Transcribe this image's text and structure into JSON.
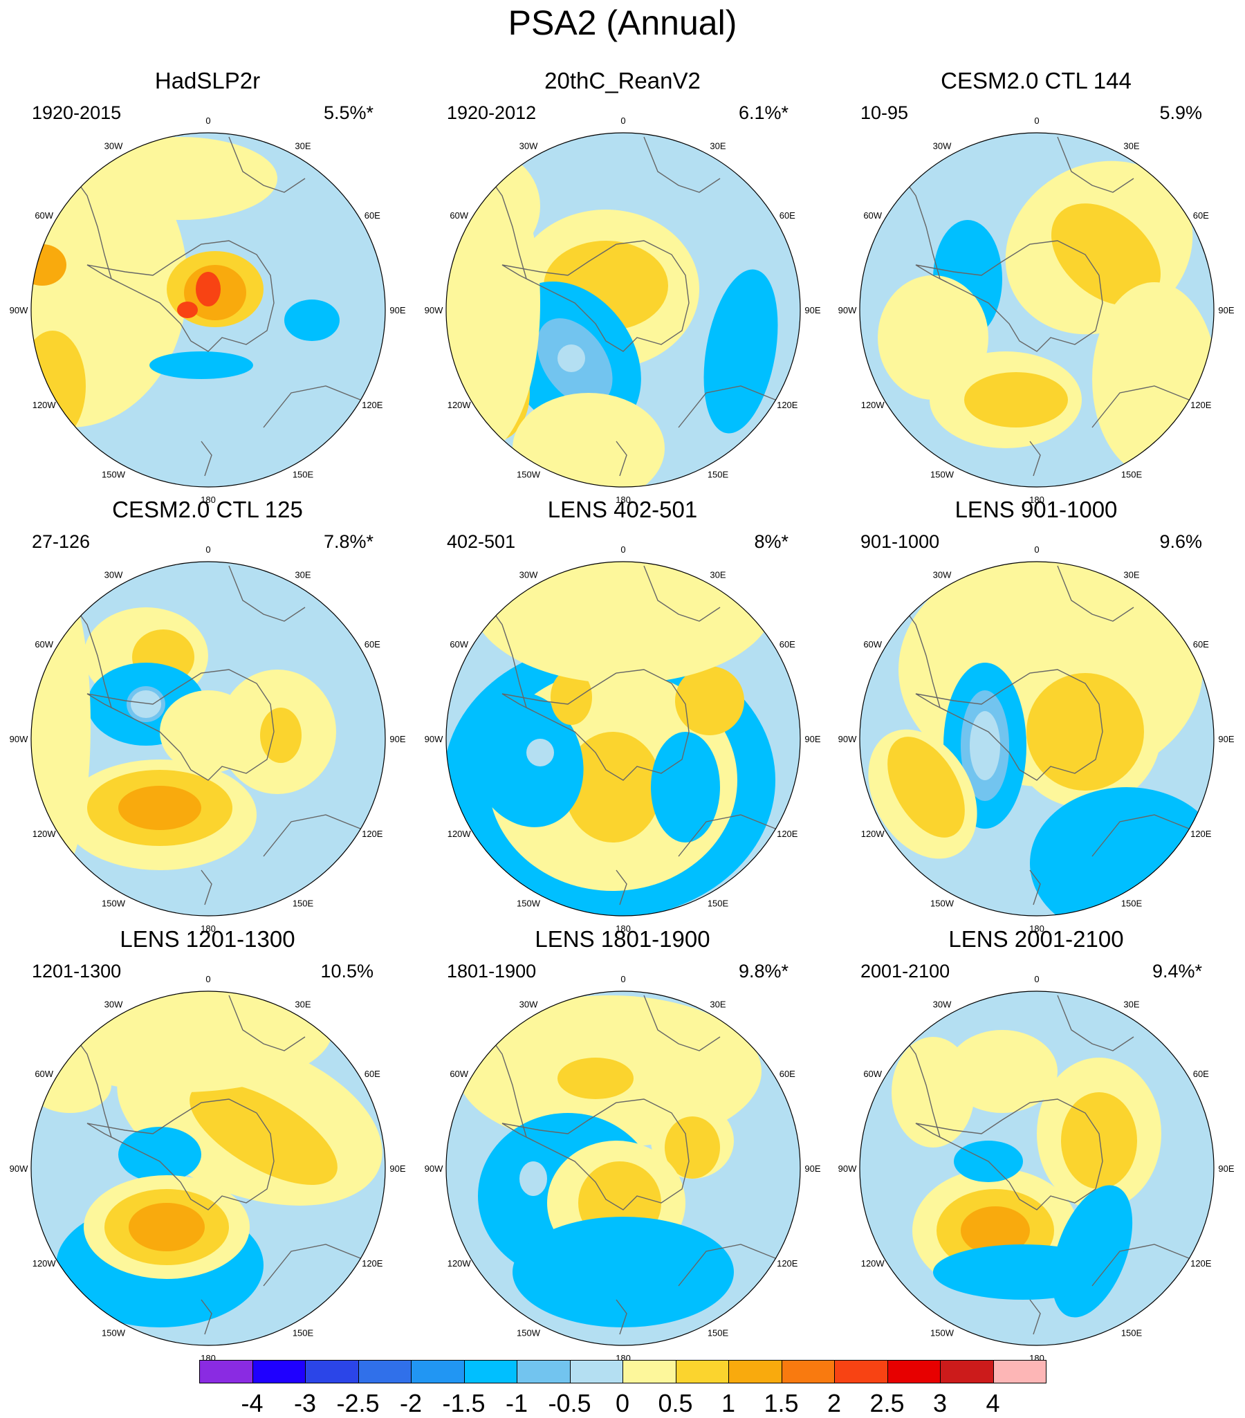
{
  "title": "PSA2 (Annual)",
  "longitude_labels": [
    "0",
    "30E",
    "60E",
    "90E",
    "120E",
    "150E",
    "180",
    "150W",
    "120W",
    "90W",
    "60W",
    "30W"
  ],
  "panels": [
    {
      "title": "HadSLP2r",
      "period": "1920-2015",
      "variance": "5.5%*"
    },
    {
      "title": "20thC_ReanV2",
      "period": "1920-2012",
      "variance": "6.1%*"
    },
    {
      "title": "CESM2.0 CTL 144",
      "period": "10-95",
      "variance": "5.9%"
    },
    {
      "title": "CESM2.0 CTL 125",
      "period": "27-126",
      "variance": "7.8%*"
    },
    {
      "title": "LENS 402-501",
      "period": "402-501",
      "variance": "8%*"
    },
    {
      "title": "LENS 901-1000",
      "period": "901-1000",
      "variance": "9.6%"
    },
    {
      "title": "LENS 1201-1300",
      "period": "1201-1300",
      "variance": "10.5%"
    },
    {
      "title": "LENS 1801-1900",
      "period": "1801-1900",
      "variance": "9.8%*"
    },
    {
      "title": "LENS 2001-2100",
      "period": "2001-2100",
      "variance": "9.4%*"
    }
  ],
  "colorbar": {
    "labels": [
      "-4",
      "-3",
      "-2.5",
      "-2",
      "-1.5",
      "-1",
      "-0.5",
      "0",
      "0.5",
      "1",
      "1.5",
      "2",
      "2.5",
      "3",
      "4"
    ],
    "colors": [
      "#8a2be2",
      "#1f00ff",
      "#2b45e8",
      "#3070ea",
      "#2196f3",
      "#00bfff",
      "#72c4ef",
      "#b4dff2",
      "#fdf79b",
      "#fbd42e",
      "#f9aa0d",
      "#f97a0f",
      "#f84313",
      "#e70000",
      "#cc1b1b",
      "#fdb6b6"
    ]
  }
}
